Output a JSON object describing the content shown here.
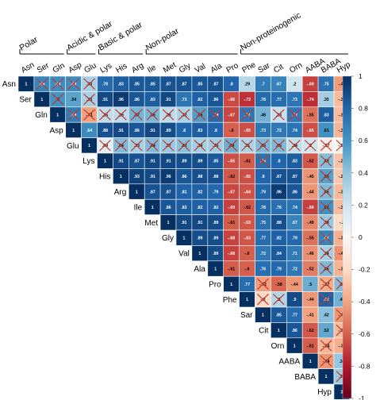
{
  "chart_data": {
    "type": "heatmap",
    "variables": [
      "Asn",
      "Ser",
      "Gln",
      "Asp",
      "Glu",
      "Lys",
      "His",
      "Arg",
      "Ile",
      "Met",
      "Gly",
      "Val",
      "Ala",
      "Pro",
      "Phe",
      "Sar",
      "Cit",
      "Orn",
      "AABA",
      "BABA",
      "Hyp"
    ],
    "groups": [
      {
        "label": "Polar",
        "span": [
          0,
          2
        ]
      },
      {
        "label": "Acidic & polar",
        "span": [
          3,
          4
        ]
      },
      {
        "label": "Basic & polar",
        "span": [
          5,
          7
        ]
      },
      {
        "label": "Non-polar",
        "span": [
          8,
          13
        ]
      },
      {
        "label": "Non-proteinogenic",
        "span": [
          14,
          20
        ]
      }
    ],
    "matrix": [
      [
        1,
        0.66,
        0.63,
        0.63,
        0.33,
        0.78,
        0.83,
        0.85,
        0.85,
        0.87,
        0.87,
        0.85,
        0.87,
        0.8,
        0.29,
        0.7,
        0.67,
        0.2,
        -0.69,
        0.75,
        -0.43
      ],
      [
        null,
        1,
        0.6,
        0.54,
        0.33,
        0.91,
        0.96,
        0.86,
        0.83,
        0.91,
        0.73,
        0.82,
        0.86,
        -0.66,
        -0.73,
        0.78,
        0.77,
        0.73,
        -0.74,
        0.35,
        -0.32
      ],
      [
        null,
        null,
        1,
        0.69,
        -0.41,
        0.25,
        0.26,
        0.47,
        0.46,
        0.26,
        0.32,
        0.56,
        0.78,
        -0.67,
        0.72,
        0.48,
        0.23,
        0.72,
        -0.55,
        0.83,
        -0.32
      ],
      [
        null,
        null,
        null,
        1,
        0.64,
        0.88,
        0.91,
        0.86,
        0.91,
        0.89,
        0.8,
        0.83,
        0.8,
        -0.6,
        -0.65,
        0.73,
        0.72,
        0.74,
        -0.65,
        0.61,
        -0.34
      ],
      [
        null,
        null,
        null,
        null,
        1,
        0.09,
        0.44,
        0.33,
        0.44,
        0.37,
        0.42,
        0.34,
        0.35,
        0.49,
        0.31,
        0.45,
        0.45,
        0.24,
        0.2,
        -0.07,
        -0.01
      ],
      [
        null,
        null,
        null,
        null,
        null,
        1,
        0.91,
        0.87,
        0.91,
        0.91,
        0.89,
        0.89,
        0.85,
        -0.65,
        -0.61,
        0.75,
        0.8,
        0.83,
        -0.62,
        0.43,
        -0.29
      ],
      [
        null,
        null,
        null,
        null,
        null,
        null,
        1,
        0.93,
        0.91,
        0.96,
        0.86,
        0.88,
        0.88,
        -0.62,
        -0.65,
        0.8,
        0.87,
        0.87,
        -0.45,
        0.55,
        -0.27
      ],
      [
        null,
        null,
        null,
        null,
        null,
        null,
        null,
        1,
        0.87,
        0.87,
        0.81,
        0.82,
        0.79,
        -0.67,
        -0.64,
        0.79,
        0.96,
        0.86,
        -0.44,
        0.45,
        -0.32
      ],
      [
        null,
        null,
        null,
        null,
        null,
        null,
        null,
        null,
        1,
        0.86,
        0.83,
        0.82,
        0.82,
        -0.69,
        -0.62,
        0.78,
        0.76,
        0.74,
        -0.69,
        0.61,
        -0.32
      ],
      [
        null,
        null,
        null,
        null,
        null,
        null,
        null,
        null,
        null,
        1,
        0.91,
        0.91,
        0.89,
        -0.61,
        -0.63,
        0.75,
        0.88,
        0.67,
        -0.49,
        0.38,
        -0.2
      ],
      [
        null,
        null,
        null,
        null,
        null,
        null,
        null,
        null,
        null,
        null,
        1,
        0.89,
        0.89,
        -0.68,
        -0.63,
        0.77,
        0.82,
        0.79,
        -0.55,
        0.67,
        -0.36
      ],
      [
        null,
        null,
        null,
        null,
        null,
        null,
        null,
        null,
        null,
        null,
        null,
        1,
        0.89,
        -0.68,
        -0.6,
        0.72,
        0.84,
        0.71,
        -0.46,
        0.34,
        -0.46
      ],
      [
        null,
        null,
        null,
        null,
        null,
        null,
        null,
        null,
        null,
        null,
        null,
        null,
        1,
        -0.61,
        -0.6,
        0.76,
        0.79,
        0.72,
        -0.52,
        0.45,
        -0.35
      ],
      [
        null,
        null,
        null,
        null,
        null,
        null,
        null,
        null,
        null,
        null,
        null,
        null,
        null,
        1,
        0.77,
        -0.42,
        -0.58,
        -0.44,
        0.5,
        -0.37,
        0.43
      ],
      [
        null,
        null,
        null,
        null,
        null,
        null,
        null,
        null,
        null,
        null,
        null,
        null,
        null,
        null,
        1,
        -0.2,
        0.3,
        0.9,
        -0.44,
        0.82,
        0.48
      ],
      [
        null,
        null,
        null,
        null,
        null,
        null,
        null,
        null,
        null,
        null,
        null,
        null,
        null,
        null,
        null,
        1,
        0.85,
        0.77,
        -0.41,
        0.42,
        -0.44
      ],
      [
        null,
        null,
        null,
        null,
        null,
        null,
        null,
        null,
        null,
        null,
        null,
        null,
        null,
        null,
        null,
        null,
        1,
        0.86,
        -0.62,
        0.52,
        -0.32
      ],
      [
        null,
        null,
        null,
        null,
        null,
        null,
        null,
        null,
        null,
        null,
        null,
        null,
        null,
        null,
        null,
        null,
        null,
        1,
        -0.61,
        -0.34,
        -0.36
      ],
      [
        null,
        null,
        null,
        null,
        null,
        null,
        null,
        null,
        null,
        null,
        null,
        null,
        null,
        null,
        null,
        null,
        null,
        null,
        1,
        -0.44,
        0.38
      ],
      [
        null,
        null,
        null,
        null,
        null,
        null,
        null,
        null,
        null,
        null,
        null,
        null,
        null,
        null,
        null,
        null,
        null,
        null,
        null,
        1,
        0.37
      ],
      [
        null,
        null,
        null,
        null,
        null,
        null,
        null,
        null,
        null,
        null,
        null,
        null,
        null,
        null,
        null,
        null,
        null,
        null,
        null,
        null,
        1
      ]
    ],
    "not_significant": [
      [
        0,
        1
      ],
      [
        0,
        2
      ],
      [
        0,
        3
      ],
      [
        0,
        4
      ],
      [
        1,
        2
      ],
      [
        1,
        4
      ],
      [
        2,
        3
      ],
      [
        2,
        4
      ],
      [
        2,
        5
      ],
      [
        2,
        6
      ],
      [
        2,
        7
      ],
      [
        2,
        8
      ],
      [
        2,
        9
      ],
      [
        2,
        10
      ],
      [
        2,
        11
      ],
      [
        2,
        12
      ],
      [
        2,
        14
      ],
      [
        2,
        16
      ],
      [
        2,
        17
      ],
      [
        4,
        5
      ],
      [
        4,
        6
      ],
      [
        4,
        7
      ],
      [
        4,
        8
      ],
      [
        4,
        9
      ],
      [
        4,
        10
      ],
      [
        4,
        11
      ],
      [
        4,
        12
      ],
      [
        4,
        13
      ],
      [
        4,
        14
      ],
      [
        4,
        15
      ],
      [
        4,
        16
      ],
      [
        4,
        17
      ],
      [
        4,
        18
      ],
      [
        4,
        19
      ],
      [
        4,
        20
      ],
      [
        5,
        15
      ],
      [
        5,
        19
      ],
      [
        6,
        19
      ],
      [
        7,
        19
      ],
      [
        8,
        19
      ],
      [
        9,
        19
      ],
      [
        10,
        19
      ],
      [
        11,
        19
      ],
      [
        12,
        19
      ],
      [
        13,
        15
      ],
      [
        13,
        19
      ],
      [
        13,
        20
      ],
      [
        14,
        15
      ],
      [
        14,
        16
      ],
      [
        14,
        19
      ],
      [
        15,
        20
      ],
      [
        16,
        20
      ],
      [
        17,
        19
      ],
      [
        18,
        19
      ],
      [
        19,
        20
      ]
    ],
    "color_scale": {
      "min": -1,
      "max": 1,
      "negative": "#67001f",
      "mid": "#f7f7f7",
      "positive": "#053061"
    },
    "colorbar_ticks": [
      1,
      0.8,
      0.6,
      0.4,
      0.2,
      0,
      -0.2,
      -0.4,
      -0.6,
      -0.8,
      -1
    ]
  }
}
